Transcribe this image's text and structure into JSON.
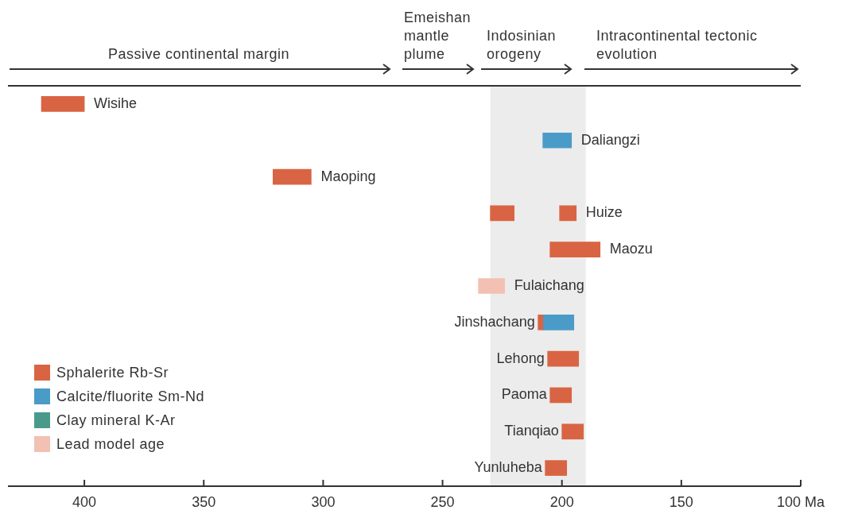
{
  "chart_data": {
    "type": "bar",
    "orientation": "horizontal",
    "categories": [
      "Wisihe",
      "Daliangzi",
      "Maoping",
      "Huize",
      "Maozu",
      "Fulaichang",
      "Jinshachang",
      "Lehong",
      "Paoma",
      "Tianqiao",
      "Yunluheba"
    ],
    "series": [
      {
        "name": "Sphalerite Rb-Sr",
        "color": "#d96443",
        "values": [
          18,
          null,
          16,
          10,
          21,
          null,
          2,
          13,
          9,
          9,
          9
        ],
        "base": [
          400,
          null,
          305,
          220,
          184,
          null,
          208,
          193,
          196,
          191,
          198
        ]
      },
      {
        "name": "Calcite/fluorite Sm-Nd",
        "color": "#4a9bc8",
        "values": [
          null,
          12,
          null,
          null,
          null,
          null,
          13,
          null,
          null,
          null,
          null
        ],
        "base": [
          null,
          196,
          null,
          null,
          null,
          null,
          195,
          null,
          null,
          null,
          null
        ]
      },
      {
        "name": "Clay mineral K-Ar",
        "color": "#4a9a8c",
        "values": [
          null,
          null,
          null,
          null,
          null,
          null,
          null,
          null,
          null,
          null,
          null
        ],
        "base": [
          null,
          null,
          null,
          null,
          null,
          null,
          null,
          null,
          null,
          null,
          null
        ]
      },
      {
        "name": "Lead model age",
        "color": "#f2c1b3",
        "values": [
          null,
          null,
          null,
          null,
          null,
          11,
          null,
          null,
          null,
          null,
          null
        ],
        "base": [
          null,
          null,
          null,
          null,
          null,
          224,
          null,
          null,
          null,
          null,
          null
        ]
      },
      {
        "color": "#d96443",
        "values": [
          null,
          null,
          null,
          7,
          null,
          null,
          null,
          null,
          null,
          null,
          null
        ],
        "base": [
          null,
          null,
          null,
          194,
          null,
          null,
          null,
          null,
          null,
          null,
          null
        ]
      }
    ],
    "xlim": [
      432,
      100
    ],
    "xticks": [
      400,
      350,
      300,
      250,
      200,
      150,
      {
        "value": 100,
        "label": "100 Ma"
      }
    ],
    "bands": [
      {
        "axis": "x",
        "from": 230,
        "to": 190,
        "color": "#ececec"
      }
    ],
    "annotations": [
      "Passive continental margin",
      "Emeishan mantle plume",
      "Indosinian orogeny",
      "Intracontinental tectonic evolution"
    ],
    "legend": "bottom left",
    "grid": false
  }
}
